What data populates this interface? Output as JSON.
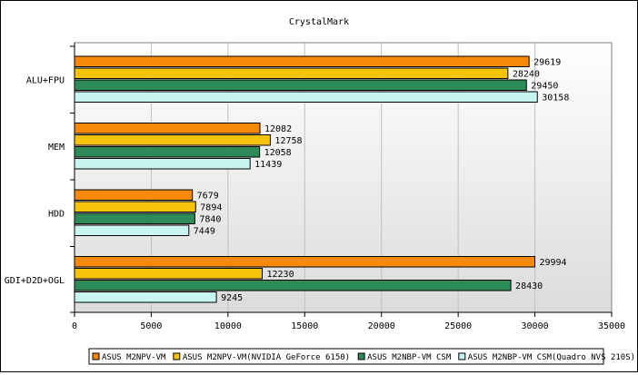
{
  "chart_data": {
    "type": "bar",
    "orientation": "horizontal",
    "title": "CrystalMark",
    "categories": [
      "ALU+FPU",
      "MEM",
      "HDD",
      "GDI+D2D+OGL"
    ],
    "series": [
      {
        "name": "ASUS M2NPV-VM",
        "color": "#f58a0a",
        "values": [
          29619,
          12082,
          7679,
          29994
        ]
      },
      {
        "name": "ASUS M2NPV-VM(NVIDIA GeForce 6150)",
        "color": "#f5c40a",
        "values": [
          28240,
          12758,
          7894,
          12230
        ]
      },
      {
        "name": "ASUS M2NBP-VM CSM",
        "color": "#2e8b57",
        "values": [
          29450,
          12058,
          7840,
          28430
        ]
      },
      {
        "name": "ASUS M2NBP-VM CSM(Quadro NVS 210S)",
        "color": "#c8f5f0",
        "values": [
          30158,
          11439,
          7449,
          9245
        ]
      }
    ],
    "xlim": [
      0,
      35000
    ],
    "xticks": [
      0,
      5000,
      10000,
      15000,
      20000,
      25000,
      30000,
      35000
    ],
    "grid": true,
    "legend_position": "bottom"
  }
}
